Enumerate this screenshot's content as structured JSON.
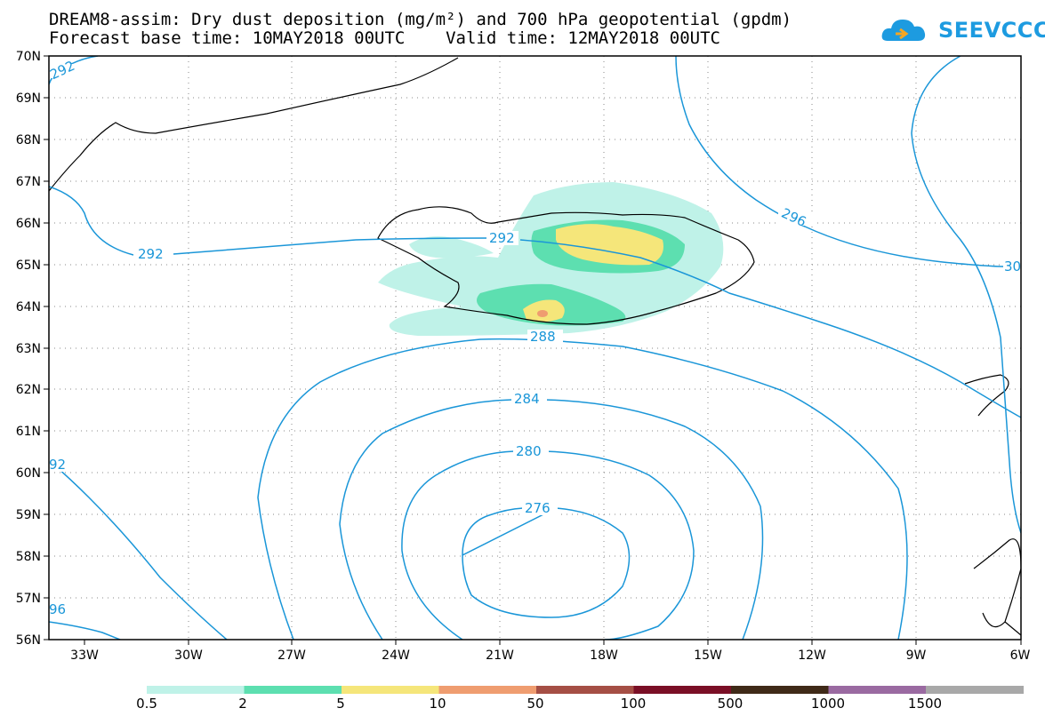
{
  "header": {
    "title_line1": "DREAM8-assim: Dry dust deposition (mg/m²) and 700 hPa geopotential (gpdm)",
    "title_line2": "Forecast base time: 10MAY2018 00UTC    Valid time: 12MAY2018 00UTC"
  },
  "logo": {
    "text": "SEEVCCC",
    "icon": "cloud-logo-icon",
    "color": "#1d9be0"
  },
  "map": {
    "lat_labels": [
      "70N",
      "69N",
      "68N",
      "67N",
      "66N",
      "65N",
      "64N",
      "63N",
      "62N",
      "61N",
      "60N",
      "59N",
      "58N",
      "57N",
      "56N"
    ],
    "lon_labels": [
      "33W",
      "30W",
      "27W",
      "24W",
      "21W",
      "18W",
      "15W",
      "12W",
      "9W",
      "6W"
    ],
    "contour_labels": {
      "c276": "276",
      "c280": "280",
      "c284": "284",
      "c288": "288",
      "c292_left": "292",
      "c292_center": "292",
      "c292_topleft": "292",
      "c292_westedge": "92",
      "c296": "296",
      "c296_left": "96",
      "c300_right": "30"
    },
    "contour_color": "#1a96d8"
  },
  "legend": {
    "labels": [
      "0.5",
      "2",
      "5",
      "10",
      "50",
      "100",
      "500",
      "1000",
      "1500"
    ],
    "colors": [
      "#bff2e8",
      "#5ddfb0",
      "#f5e67a",
      "#ef9d70",
      "#a54f45",
      "#7a0f26",
      "#3f2a18",
      "#9a6aa1",
      "#a8a8a8"
    ]
  }
}
